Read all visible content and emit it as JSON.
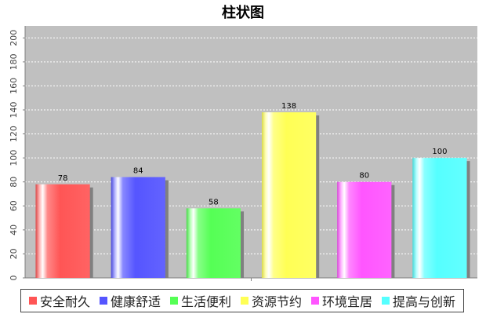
{
  "chart_data": {
    "type": "bar",
    "title": "柱状图",
    "categories": [
      "安全耐久",
      "健康舒适",
      "生活便利",
      "资源节约",
      "环境宜居",
      "提高与创新"
    ],
    "values": [
      78,
      84,
      58,
      138,
      80,
      100
    ],
    "colors": [
      "#ff5555",
      "#5555ff",
      "#55ff55",
      "#ffff55",
      "#ff55ff",
      "#55ffff"
    ],
    "ylim": [
      0,
      210
    ],
    "yticks": [
      0,
      20,
      40,
      60,
      80,
      100,
      120,
      140,
      160,
      180,
      200
    ],
    "y_tick_labels_rotated": true,
    "grid": true,
    "plot_background": "#c0c0c0",
    "legend_position": "bottom",
    "xlabel": "",
    "ylabel": ""
  }
}
